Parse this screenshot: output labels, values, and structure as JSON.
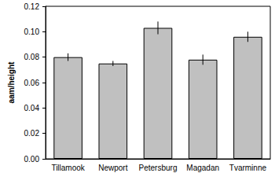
{
  "chart_data": {
    "type": "bar",
    "y_label": "aam/height",
    "categories": [
      "Tillamook",
      "Newport",
      "Petersburg",
      "Magadan",
      "Tvarminne"
    ],
    "values": [
      0.08,
      0.075,
      0.103,
      0.078,
      0.096
    ],
    "errors": [
      0.003,
      0.002,
      0.005,
      0.004,
      0.004
    ],
    "color": "#c0c0c0",
    "ylim": [
      0,
      0.12
    ],
    "yticks": [
      {
        "value": 0,
        "label": "0.00"
      },
      {
        "value": 0.02,
        "label": "0.02"
      },
      {
        "value": 0.04,
        "label": "0.04"
      },
      {
        "value": 0.06,
        "label": "0.06"
      },
      {
        "value": 0.08,
        "label": "0.08"
      },
      {
        "value": 0.1,
        "label": "0.10"
      },
      {
        "value": 0.12,
        "label": "0.12"
      }
    ],
    "grid": false
  }
}
